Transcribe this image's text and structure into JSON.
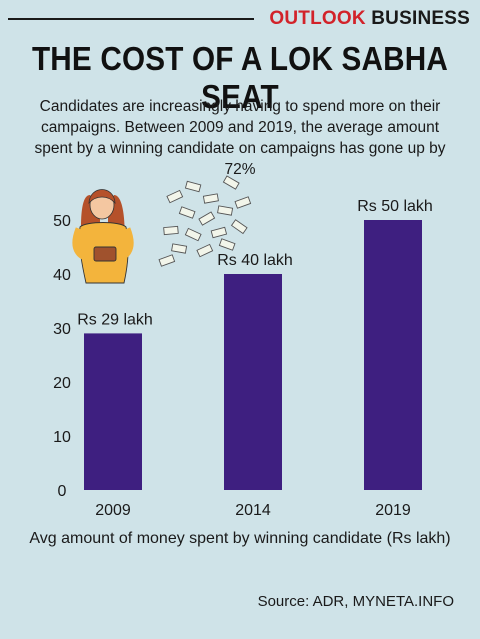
{
  "header": {
    "brand_part1": "OUTLOOK",
    "brand_part2": "BUSINESS"
  },
  "title": "THE COST OF A LOK SABHA SEAT",
  "subtitle": "Candidates are increasingly having to spend more on their campaigns. Between 2009 and 2019, the average amount spent by a winning candidate on campaigns has gone up by 72%",
  "source": "Source: ADR, MYNETA.INFO",
  "colors": {
    "background": "#cfe3e8",
    "bar": "#3e1f80",
    "brand_red": "#d2232a"
  },
  "illustration": "woman-holding-empty-wallet-with-money-flying-icon",
  "chart_data": {
    "type": "bar",
    "categories": [
      "2009",
      "2014",
      "2019"
    ],
    "values": [
      29,
      40,
      50
    ],
    "data_labels": [
      "Rs 29 lakh",
      "Rs 40 lakh",
      "Rs 50 lakh"
    ],
    "y_ticks": [
      0,
      10,
      20,
      30,
      40,
      50
    ],
    "ylim": [
      0,
      50
    ],
    "xlabel": "Avg amount of money spent by winning candidate (Rs lakh)",
    "grid": false,
    "legend": "none"
  }
}
